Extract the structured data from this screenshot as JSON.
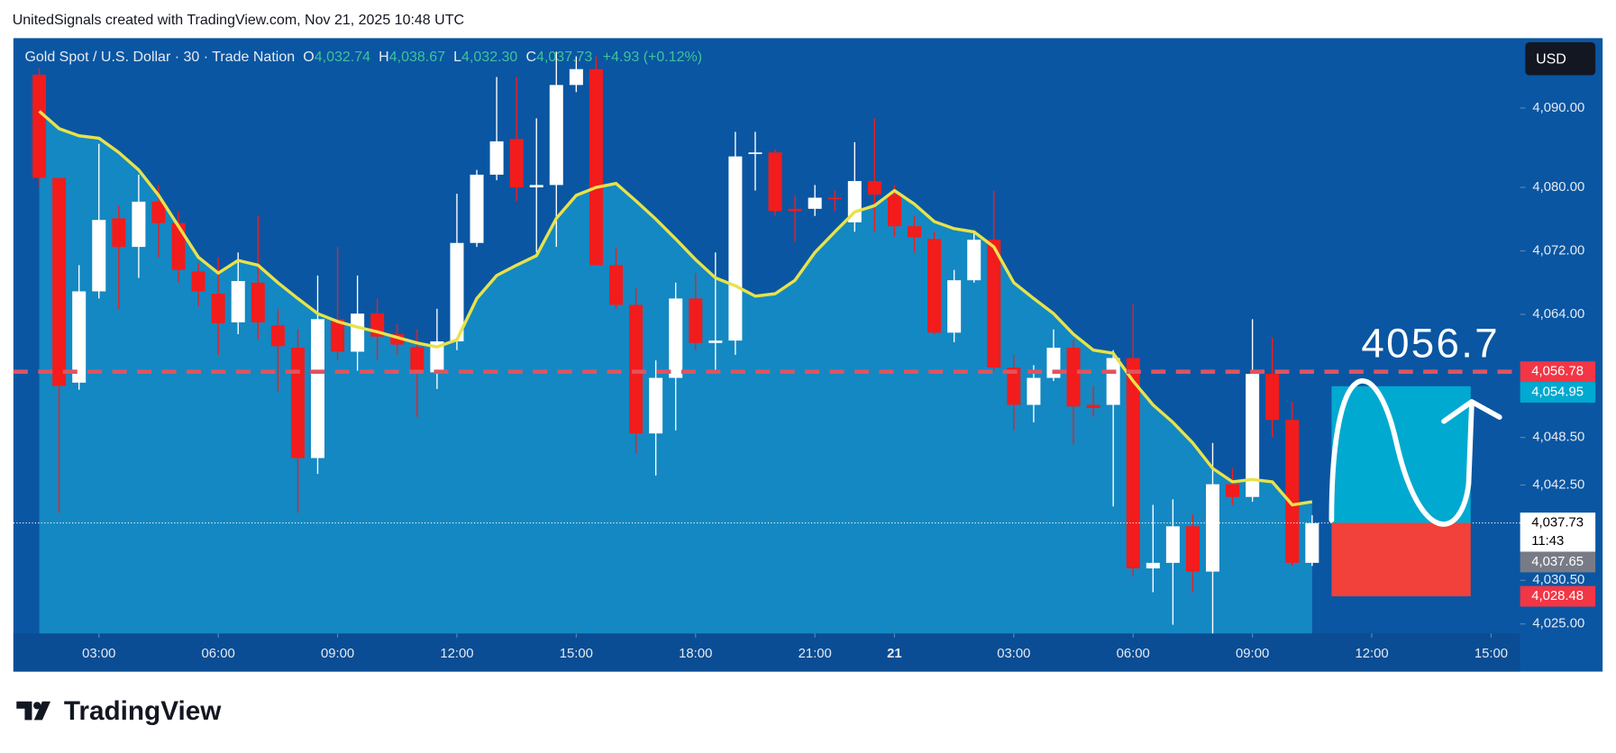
{
  "header": "UnitedSignals created with TradingView.com, Nov 21, 2025 10:48 UTC",
  "legend": {
    "symbol": "Gold Spot / U.S. Dollar · 30 · Trade Nation",
    "items": [
      {
        "key": "O",
        "value": "4,032.74"
      },
      {
        "key": "H",
        "value": "4,038.67"
      },
      {
        "key": "L",
        "value": "4,032.30"
      },
      {
        "key": "C",
        "value": "4,037.73"
      }
    ],
    "change": "+4.93 (+0.12%)"
  },
  "currency": "USD",
  "logo": "TradingView",
  "chart_data": {
    "type": "candlestick",
    "up_color": "#ffffff",
    "down_color": "#f21c1c",
    "open": [
      4094.2,
      4081.2,
      4055.4,
      4066.9,
      4076.1,
      4072.5,
      4078.2,
      4075.5,
      4069.4,
      4066.6,
      4063.0,
      4068.0,
      4062.6,
      4059.8,
      4045.9,
      4063.4,
      4059.3,
      4064.1,
      4061.5,
      4059.9,
      4056.7,
      4060.6,
      4073.0,
      4081.6,
      4086.1,
      4080.0,
      4080.3,
      4092.9,
      4094.9,
      4070.2,
      4065.2,
      4049.0,
      4056.0,
      4066.0,
      4060.4,
      4060.7,
      4084.2,
      4084.4,
      4077.3,
      4077.3,
      4078.7,
      4075.6,
      4080.8,
      4079.1,
      4075.1,
      4073.5,
      4061.7,
      4068.3,
      4073.4,
      4057.3,
      4052.6,
      4056.0,
      4059.8,
      4052.6,
      4052.6,
      4058.5,
      4032.0,
      4032.7,
      4037.3,
      4031.6,
      4042.6,
      4041.0,
      4056.5,
      4050.7,
      4032.7
    ],
    "high": [
      4095.0,
      4081.2,
      4070.2,
      4085.5,
      4077.7,
      4081.6,
      4080.3,
      4077.0,
      4070.5,
      4071.2,
      4071.8,
      4076.4,
      4064.7,
      4062.1,
      4068.9,
      4072.5,
      4068.9,
      4066.0,
      4062.8,
      4062.1,
      4064.7,
      4079.2,
      4082.2,
      4093.9,
      4093.9,
      4088.7,
      4097.1,
      4096.5,
      4096.5,
      4072.5,
      4067.3,
      4058.2,
      4068.0,
      4069.2,
      4071.8,
      4087.0,
      4087.0,
      4084.8,
      4079.0,
      4080.3,
      4079.6,
      4085.7,
      4088.7,
      4080.3,
      4076.4,
      4074.4,
      4069.6,
      4074.4,
      4079.6,
      4058.9,
      4057.6,
      4062.1,
      4060.8,
      4055.0,
      4059.5,
      4065.4,
      4040.0,
      4040.7,
      4038.8,
      4047.8,
      4044.6,
      4063.4,
      4061.1,
      4053.0,
      4038.7
    ],
    "low": [
      4080.0,
      4039.0,
      4054.5,
      4066.0,
      4064.7,
      4068.6,
      4071.2,
      4068.0,
      4065.0,
      4058.9,
      4061.5,
      4060.8,
      4054.3,
      4039.0,
      4043.9,
      4058.2,
      4056.9,
      4058.2,
      4058.9,
      4051.1,
      4054.6,
      4059.5,
      4072.5,
      4080.9,
      4078.3,
      4071.8,
      4072.5,
      4092.0,
      4070.2,
      4064.7,
      4046.5,
      4043.7,
      4049.4,
      4059.5,
      4056.9,
      4058.9,
      4079.6,
      4076.4,
      4073.1,
      4076.4,
      4077.0,
      4074.4,
      4074.4,
      4073.8,
      4071.8,
      4061.5,
      4060.5,
      4068.0,
      4056.9,
      4049.4,
      4050.4,
      4055.6,
      4047.6,
      4051.1,
      4039.8,
      4031.0,
      4029.0,
      4024.9,
      4029.0,
      4023.8,
      4040.0,
      4040.4,
      4048.5,
      4032.3,
      4032.3
    ],
    "close": [
      4081.2,
      4055.0,
      4066.9,
      4075.9,
      4072.5,
      4078.2,
      4075.5,
      4069.6,
      4066.9,
      4062.9,
      4068.2,
      4063.0,
      4060.0,
      4045.9,
      4063.4,
      4059.3,
      4064.1,
      4061.2,
      4060.2,
      4056.7,
      4060.6,
      4073.0,
      4081.6,
      4085.8,
      4080.0,
      4080.3,
      4092.9,
      4094.9,
      4070.2,
      4065.2,
      4049.0,
      4056.0,
      4066.0,
      4060.4,
      4060.7,
      4083.9,
      4084.4,
      4077.0,
      4077.0,
      4078.7,
      4078.5,
      4080.8,
      4079.1,
      4075.1,
      4073.7,
      4061.7,
      4068.3,
      4073.4,
      4057.3,
      4052.6,
      4056.0,
      4059.8,
      4052.4,
      4052.2,
      4058.5,
      4032.0,
      4032.7,
      4037.3,
      4031.6,
      4042.6,
      4041.0,
      4056.5,
      4050.7,
      4032.7,
      4037.7
    ],
    "ma": {
      "color": "#e8e24a",
      "area_color": "#1690c8",
      "values": [
        4089.6,
        4087.4,
        4086.5,
        4086.2,
        4084.4,
        4082.2,
        4079.0,
        4075.1,
        4071.2,
        4069.2,
        4070.8,
        4070.2,
        4068.0,
        4066.0,
        4064.1,
        4063.1,
        4062.4,
        4061.8,
        4061.1,
        4060.4,
        4059.9,
        4060.8,
        4066.0,
        4068.9,
        4070.2,
        4071.4,
        4076.1,
        4079.0,
        4080.0,
        4080.5,
        4078.3,
        4076.0,
        4073.5,
        4070.9,
        4068.6,
        4067.6,
        4066.3,
        4066.6,
        4068.3,
        4071.8,
        4074.4,
        4076.9,
        4077.7,
        4079.6,
        4077.9,
        4075.7,
        4074.8,
        4074.4,
        4072.5,
        4068.0,
        4066.0,
        4064.1,
        4061.5,
        4059.5,
        4059.1,
        4055.6,
        4052.6,
        4050.4,
        4047.8,
        4044.6,
        4042.9,
        4043.2,
        4042.9,
        4040.0,
        4040.4
      ]
    },
    "xlim": [
      -1.3,
      74.46
    ],
    "xticks": [
      {
        "value": 3,
        "label": "03:00"
      },
      {
        "value": 9,
        "label": "06:00"
      },
      {
        "value": 15,
        "label": "09:00"
      },
      {
        "value": 21,
        "label": "12:00"
      },
      {
        "value": 27,
        "label": "15:00"
      },
      {
        "value": 33,
        "label": "18:00"
      },
      {
        "value": 39,
        "label": "21:00"
      },
      {
        "value": 43,
        "label": "21"
      },
      {
        "value": 49,
        "label": "03:00"
      },
      {
        "value": 55,
        "label": "06:00"
      },
      {
        "value": 61,
        "label": "09:00"
      },
      {
        "value": 67,
        "label": "12:00"
      },
      {
        "value": 73,
        "label": "15:00"
      }
    ],
    "ylim": [
      4023.8,
      4098.8
    ],
    "yticks": [
      {
        "value": 4090,
        "label": "4,090.00"
      },
      {
        "value": 4080,
        "label": "4,080.00"
      },
      {
        "value": 4072,
        "label": "4,072.00"
      },
      {
        "value": 4064,
        "label": "4,064.00"
      },
      {
        "value": 4048.5,
        "label": "4,048.50"
      },
      {
        "value": 4042.5,
        "label": "4,042.50"
      },
      {
        "value": 4030.5,
        "label": "4,030.50"
      },
      {
        "value": 4025,
        "label": "4,025.00"
      }
    ],
    "price_labels": [
      {
        "value": 4056.78,
        "label": "4,056.78",
        "color": "#f23645",
        "line": "dashed"
      },
      {
        "value": 4054.95,
        "label": "4,054.95",
        "color": "#00a9d0"
      },
      {
        "value": 4037.73,
        "label": "4,037.73",
        "sub": "11:43",
        "color": "#ffffff",
        "text_color": "#000000",
        "line": "dotted"
      },
      {
        "value": 4037.65,
        "label": "4,037.65",
        "color": "#787b86"
      },
      {
        "value": 4028.48,
        "label": "4,028.48",
        "color": "#f23645"
      }
    ],
    "zones": [
      {
        "top": 4054.95,
        "bottom": 4037.73,
        "color": "#00a9d0"
      },
      {
        "top": 4037.73,
        "bottom": 4028.48,
        "color": "#f2403a"
      }
    ],
    "annotation": "4056.7"
  }
}
